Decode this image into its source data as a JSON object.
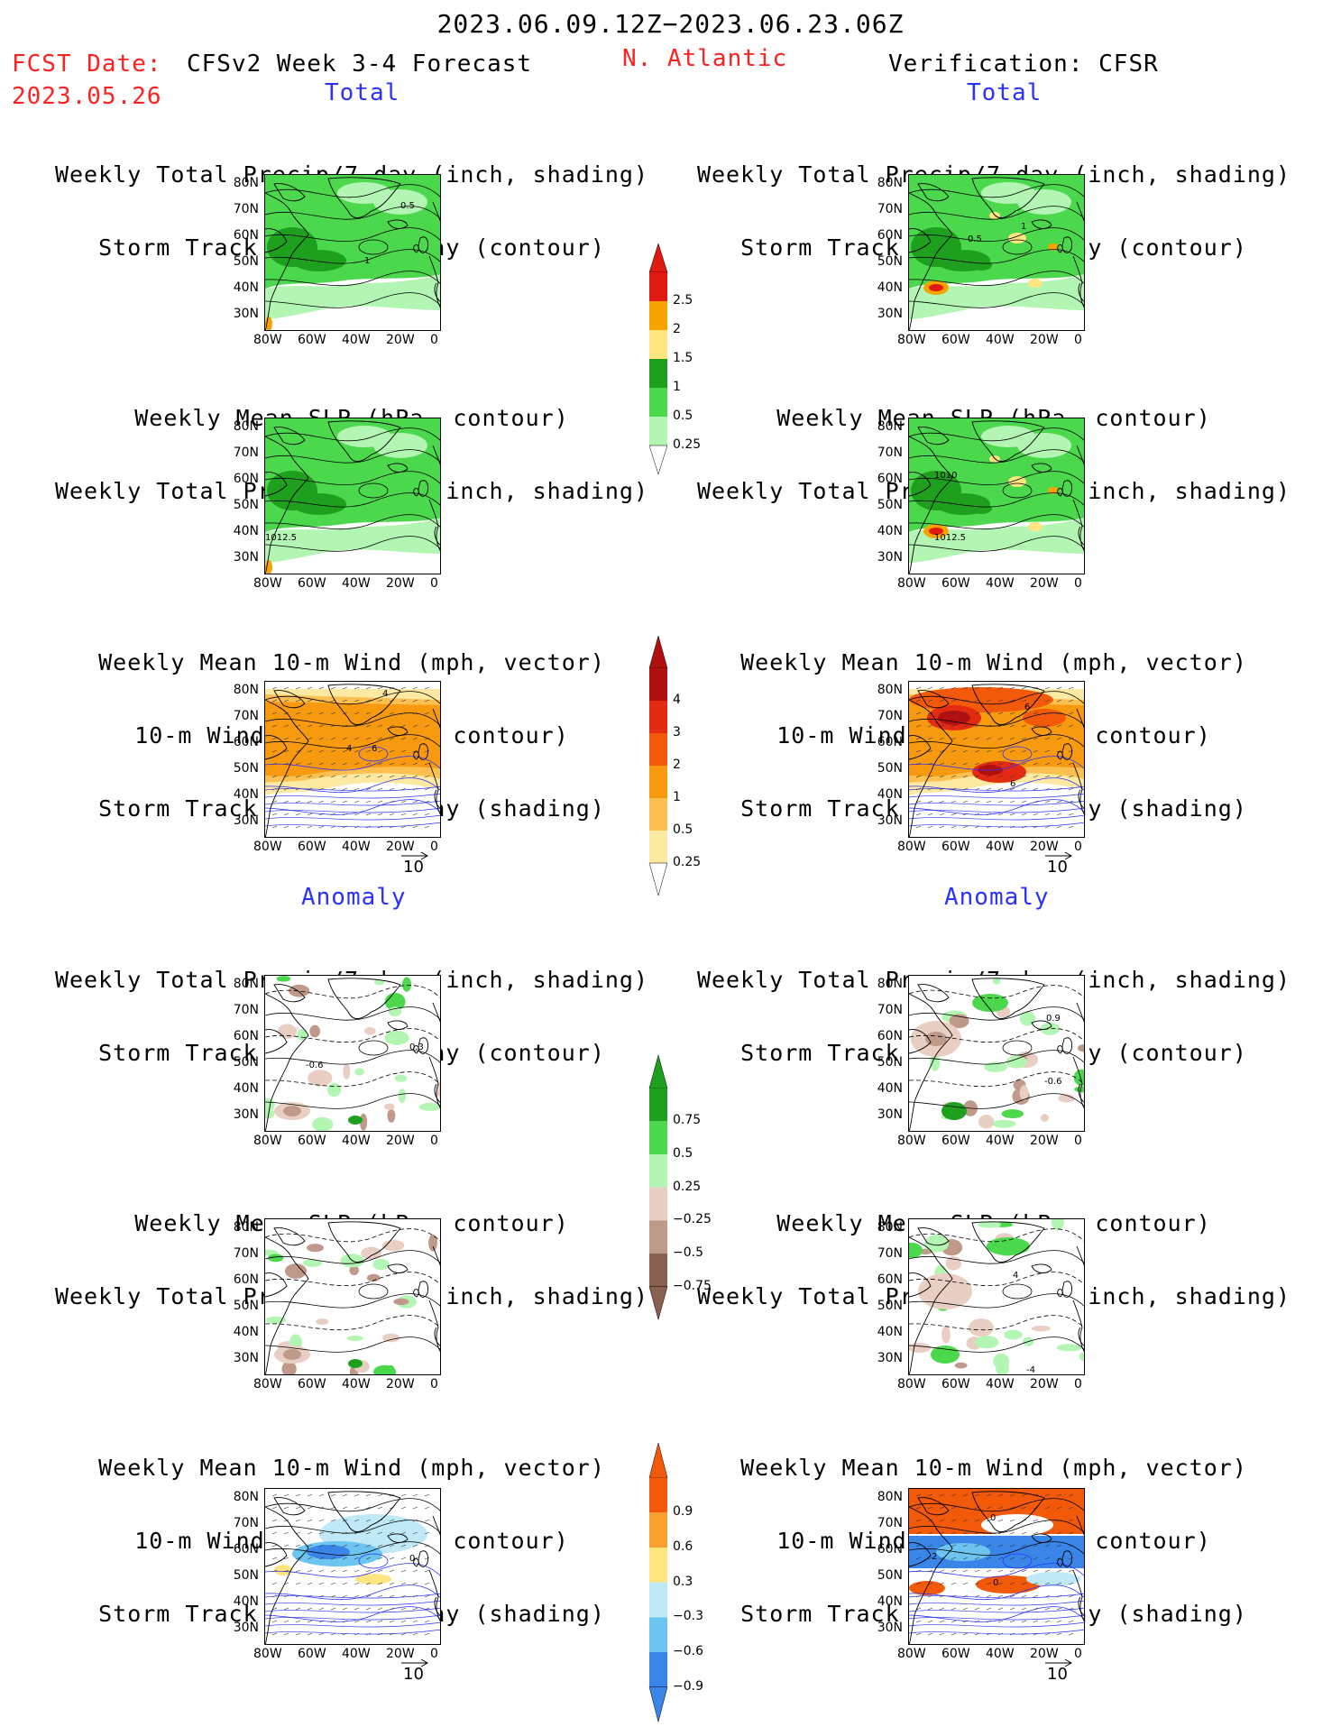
{
  "header": {
    "period": "2023.06.09.12Z−2023.06.23.06Z",
    "fcst_label": "FCST Date:",
    "fcst_date": "2023.05.26",
    "model_title": "CFSv2 Week 3-4 Forecast",
    "region": "N. Atlantic",
    "verification": "Verification: CFSR"
  },
  "sections": {
    "total": "Total",
    "anomaly": "Anomaly"
  },
  "panel_titles": {
    "precip_storm": [
      "Weekly Total Precip/7-day (inch, shading)",
      "Storm Track Density/7-day (contour)"
    ],
    "slp_precip": [
      "Weekly Mean SLP (hPa, contour)",
      "Weekly Total Precip/7-day (inch, shading)"
    ],
    "wind_storm": [
      "Weekly Mean 10-m Wind (mph, vector)",
      "10-m Wind Speed (mph, contour)",
      "Storm Track Density/7-day (shading)"
    ]
  },
  "axes": {
    "lat_ticks": [
      "80N",
      "70N",
      "60N",
      "50N",
      "40N",
      "30N"
    ],
    "lon_ticks": [
      "80W",
      "60W",
      "40W",
      "20W",
      "0"
    ]
  },
  "vector_ref": "10",
  "colorbars": {
    "precip_total": {
      "labels": [
        "2.5",
        "2",
        "1.5",
        "1",
        "0.5",
        "0.25"
      ],
      "colors": [
        "#e01a10",
        "#f7a400",
        "#ffe680",
        "#1ea01e",
        "#4cd84c",
        "#b3f5b3"
      ]
    },
    "storm_total": {
      "labels": [
        "4",
        "3",
        "2",
        "1",
        "0.5",
        "0.25"
      ],
      "colors": [
        "#b01010",
        "#e32b12",
        "#f25a0a",
        "#f79a10",
        "#fbc050",
        "#fde9a2"
      ]
    },
    "precip_anom": {
      "labels": [
        "0.75",
        "0.5",
        "0.25",
        "−0.25",
        "−0.5",
        "−0.75"
      ],
      "colors": [
        "#1ea01e",
        "#4cd84c",
        "#b3f5b3",
        "#e9cfc3",
        "#bf9a8a",
        "#8a6050"
      ]
    },
    "storm_anom": {
      "labels": [
        "0.9",
        "0.6",
        "0.3",
        "−0.3",
        "−0.6",
        "−0.9"
      ],
      "colors": [
        "#f25a0a",
        "#f9a030",
        "#ffe680",
        "#bfe9f7",
        "#6cc5f0",
        "#3a86e8"
      ]
    }
  },
  "contour_labels": {
    "f_total_1": [
      "0.5",
      "1"
    ],
    "f_total_2": [
      "1012.5"
    ],
    "f_total_3": [
      "4",
      "4",
      "6"
    ],
    "v_total_1": [
      "0.5",
      "1"
    ],
    "v_total_2": [
      "1010",
      "1012.5"
    ],
    "v_total_3": [
      "6",
      "6"
    ],
    "f_anom_1": [
      "-0.6",
      "0.3"
    ],
    "f_anom_3": [
      "0"
    ],
    "v_anom_1": [
      "0.9",
      "-0.6"
    ],
    "v_anom_2": [
      "-4",
      "4"
    ],
    "v_anom_3": [
      "0",
      "2",
      "0"
    ]
  }
}
